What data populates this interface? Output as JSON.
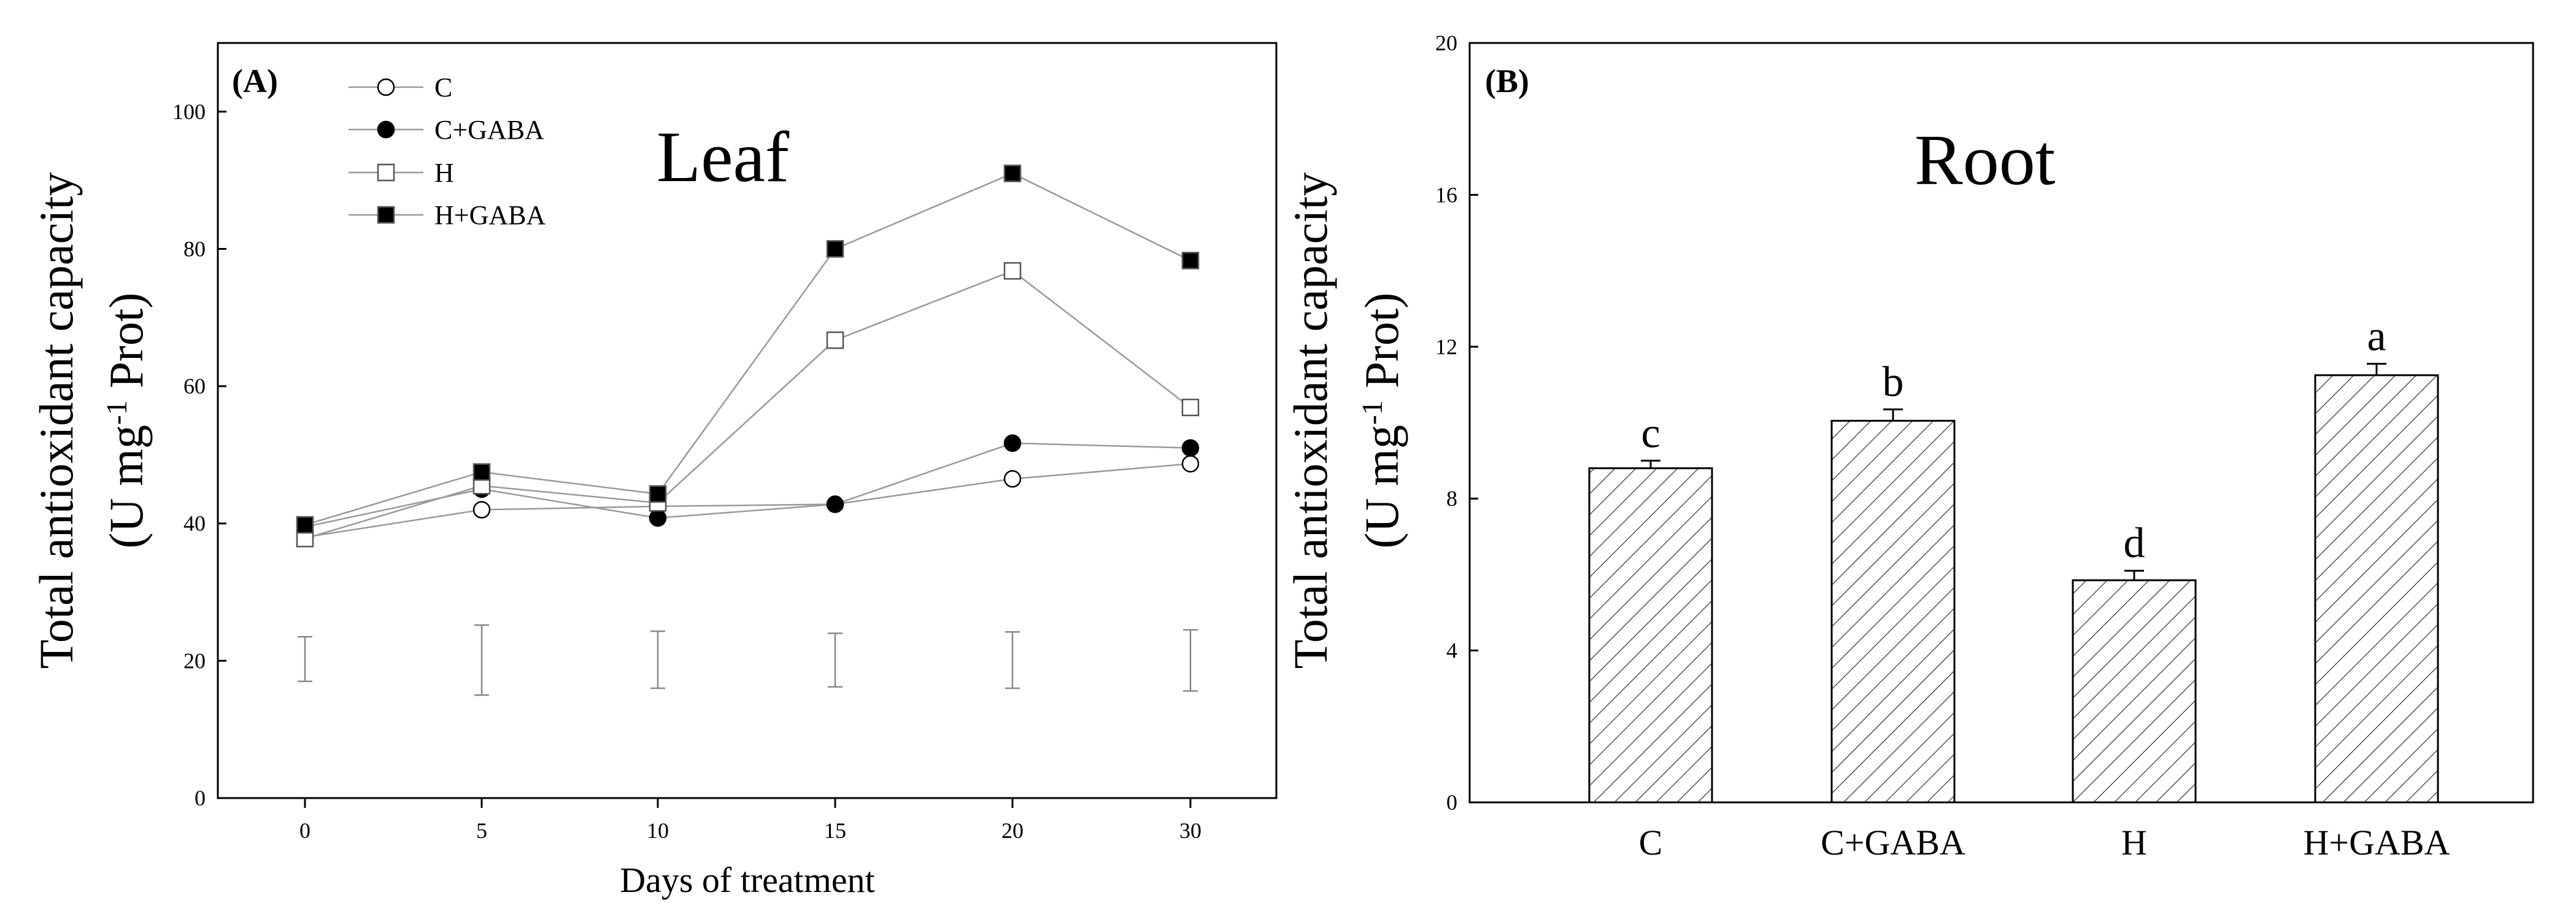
{
  "chart_data": [
    {
      "panel": "(A)",
      "type": "line",
      "title": "Leaf",
      "xlabel": "Days of treatment",
      "ylabel_line1": "Total antioxidant capacity",
      "ylabel_line2_pre": "(U mg",
      "ylabel_line2_sup": "-1",
      "ylabel_line2_post": " Prot)",
      "x": [
        0,
        5,
        10,
        15,
        20,
        30
      ],
      "x_ticks": [
        "0",
        "5",
        "10",
        "15",
        "20",
        "30"
      ],
      "ylim": [
        0,
        110
      ],
      "y_ticks": [
        "0",
        "20",
        "40",
        "60",
        "80",
        "100"
      ],
      "series": [
        {
          "name": "C",
          "marker": "circle-open",
          "values": [
            38.0,
            42.0,
            42.5,
            42.8,
            46.5,
            48.7
          ]
        },
        {
          "name": "C+GABA",
          "marker": "circle-filled",
          "values": [
            39.5,
            45.0,
            40.8,
            42.8,
            51.7,
            51.0
          ]
        },
        {
          "name": "H",
          "marker": "square-open",
          "values": [
            37.8,
            45.5,
            43.0,
            66.7,
            76.8,
            56.9
          ]
        },
        {
          "name": "H+GABA",
          "marker": "square-filled",
          "values": [
            39.8,
            47.5,
            44.3,
            80.0,
            91.0,
            78.3
          ]
        }
      ],
      "lsd_bars": [
        {
          "x": 0,
          "low": 17.0,
          "high": 23.5
        },
        {
          "x": 5,
          "low": 15.0,
          "high": 25.2
        },
        {
          "x": 10,
          "low": 16.0,
          "high": 24.3
        },
        {
          "x": 15,
          "low": 16.2,
          "high": 24.0
        },
        {
          "x": 20,
          "low": 16.0,
          "high": 24.2
        },
        {
          "x": 30,
          "low": 15.6,
          "high": 24.5
        }
      ]
    },
    {
      "panel": "(B)",
      "type": "bar",
      "title": "Root",
      "xlabel": "",
      "ylabel_line1": "Total antioxidant capacity",
      "ylabel_line2_pre": "(U mg",
      "ylabel_line2_sup": "-1",
      "ylabel_line2_post": " Prot)",
      "categories": [
        "C",
        "C+GABA",
        "H",
        "H+GABA"
      ],
      "values": [
        8.8,
        10.05,
        5.85,
        11.25
      ],
      "errors": [
        0.2,
        0.3,
        0.25,
        0.3
      ],
      "labels": [
        "c",
        "b",
        "d",
        "a"
      ],
      "ylim": [
        0,
        20
      ],
      "y_ticks": [
        "0",
        "4",
        "8",
        "12",
        "16",
        "20"
      ]
    }
  ]
}
